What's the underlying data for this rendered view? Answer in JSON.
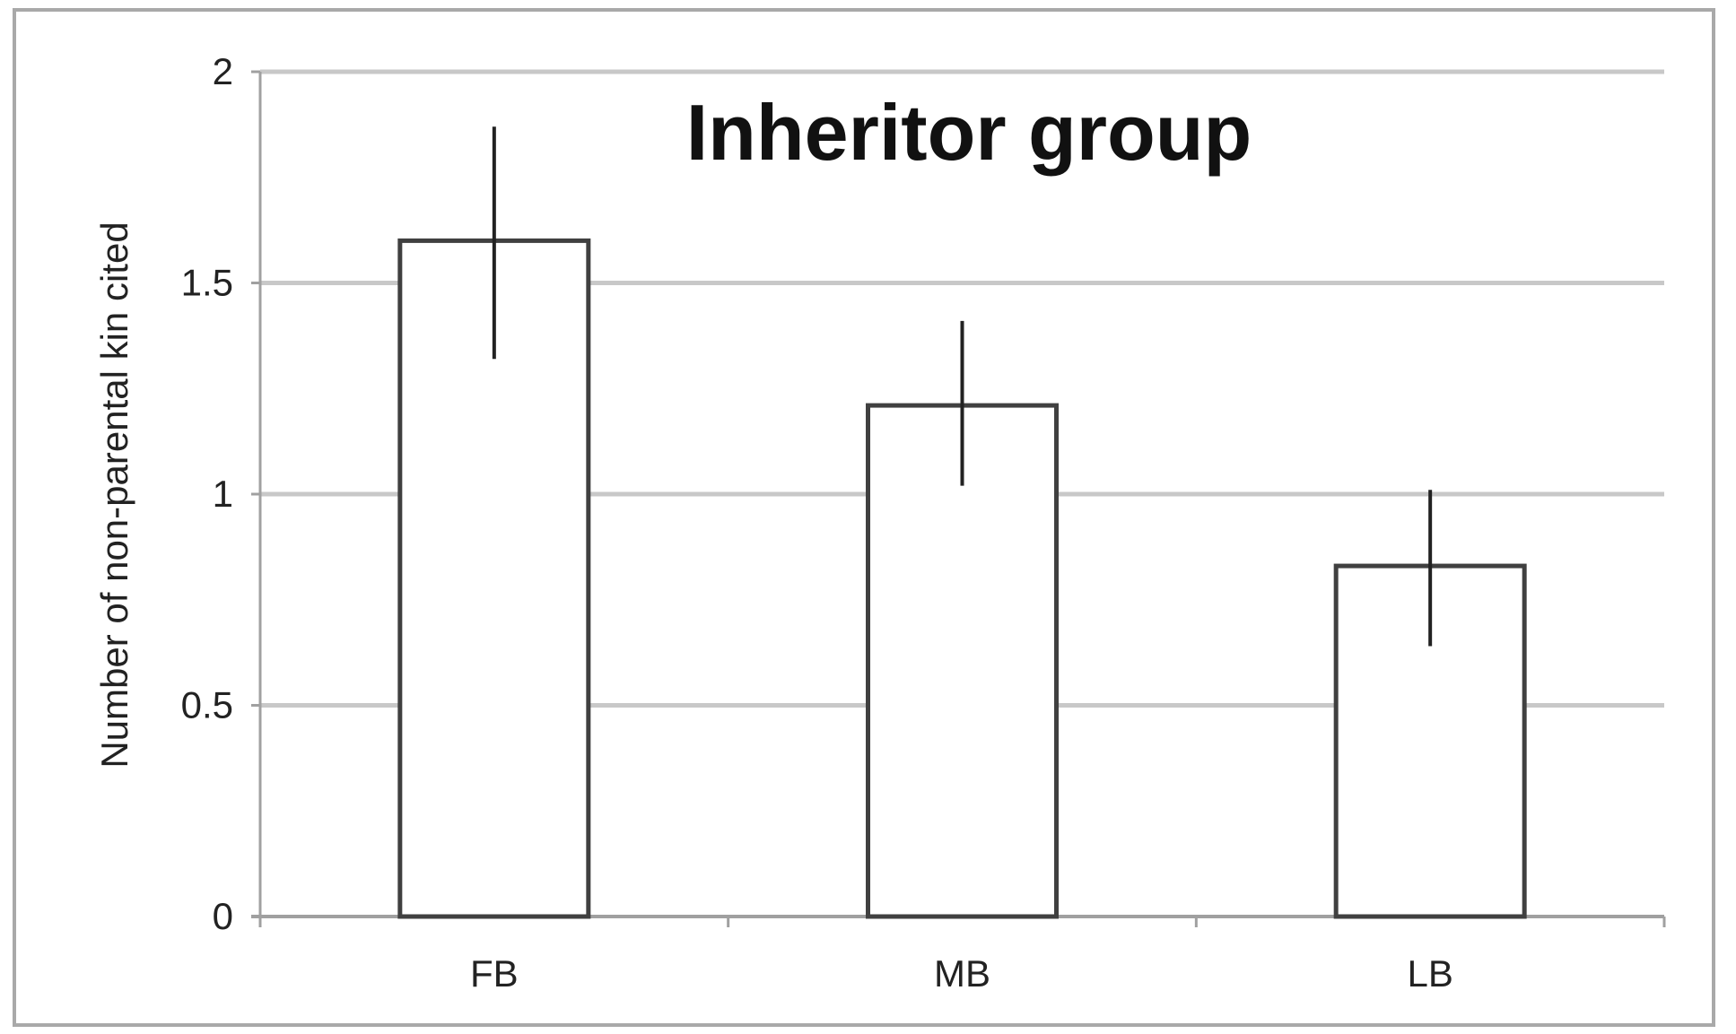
{
  "chart_data": {
    "type": "bar",
    "title": "Inheritor group",
    "xlabel": "",
    "ylabel": "Number of non-parental kin cited",
    "categories": [
      "FB",
      "MB",
      "LB"
    ],
    "values": [
      1.6,
      1.21,
      0.83
    ],
    "error_low": [
      1.32,
      1.02,
      0.64
    ],
    "error_high": [
      1.87,
      1.41,
      1.01
    ],
    "ylim": [
      0,
      2
    ],
    "yticks": [
      0,
      0.5,
      1,
      1.5,
      2
    ],
    "ytick_labels": [
      "0",
      "0.5",
      "1",
      "1.5",
      "2"
    ],
    "grid": true,
    "legend": "none",
    "colors": {
      "bar_fill": "#ffffff",
      "bar_stroke": "#404040",
      "grid": "#c8c8c8",
      "error_bar": "#222222"
    }
  }
}
